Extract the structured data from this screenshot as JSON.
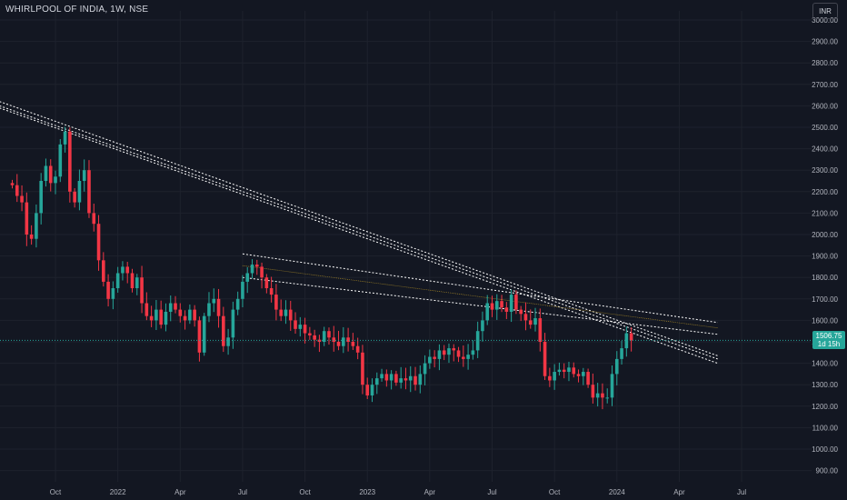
{
  "header": {
    "symbol_title": "WHIRLPOOL OF INDIA, 1W, NSE",
    "currency": "INR"
  },
  "last_price": {
    "value": "1506.75",
    "countdown": "1d 15h"
  },
  "colors": {
    "background": "#131722",
    "up": "#26a69a",
    "up_body": "#089981",
    "down": "#f23645",
    "down_body": "#f23645",
    "trendline": "#ffffff",
    "midline": "#c9a227",
    "price_line": "#26a69a",
    "axis_text": "#b2b5be"
  },
  "chart_data": {
    "type": "candlestick",
    "interval": "1W",
    "y_axis": {
      "ticks": [
        900,
        1000,
        1100,
        1200,
        1300,
        1400,
        1500,
        1600,
        1700,
        1800,
        1900,
        2000,
        2100,
        2200,
        2300,
        2400,
        2500,
        2600,
        2700,
        2800,
        2900,
        3000
      ],
      "labels": [
        "900.00",
        "1000.00",
        "1100.00",
        "1200.00",
        "1300.00",
        "1400.00",
        "1500.00",
        "1600.00",
        "1700.00",
        "1800.00",
        "1900.00",
        "2000.00",
        "2100.00",
        "2200.00",
        "2300.00",
        "2400.00",
        "2500.00",
        "2600.00",
        "2700.00",
        "2800.00",
        "2900.00",
        "3000.00"
      ],
      "range": [
        850,
        3050
      ]
    },
    "x_axis": {
      "labels": [
        "Oct",
        "2022",
        "Apr",
        "Jul",
        "Oct",
        "2023",
        "Apr",
        "Jul",
        "Oct",
        "2024",
        "Apr",
        "Jul"
      ],
      "label_weeks": [
        9,
        22,
        35,
        48,
        61,
        74,
        87,
        100,
        113,
        126,
        139,
        152
      ],
      "total_weeks": 165
    },
    "closes": [
      2230,
      2180,
      2150,
      2000,
      1980,
      2100,
      2250,
      2320,
      2240,
      2270,
      2420,
      2480,
      2200,
      2150,
      2250,
      2300,
      2100,
      2050,
      1880,
      1780,
      1700,
      1750,
      1820,
      1850,
      1820,
      1750,
      1800,
      1680,
      1620,
      1600,
      1650,
      1580,
      1640,
      1680,
      1650,
      1620,
      1600,
      1650,
      1600,
      1450,
      1620,
      1680,
      1700,
      1620,
      1480,
      1520,
      1650,
      1700,
      1780,
      1820,
      1860,
      1850,
      1800,
      1750,
      1720,
      1650,
      1620,
      1650,
      1600,
      1560,
      1580,
      1540,
      1530,
      1510,
      1500,
      1550,
      1520,
      1500,
      1480,
      1520,
      1500,
      1480,
      1450,
      1300,
      1250,
      1300,
      1330,
      1350,
      1320,
      1350,
      1310,
      1330,
      1320,
      1340,
      1300,
      1350,
      1400,
      1430,
      1420,
      1460,
      1440,
      1470,
      1460,
      1430,
      1420,
      1440,
      1460,
      1550,
      1600,
      1680,
      1650,
      1690,
      1660,
      1640,
      1720,
      1650,
      1630,
      1600,
      1580,
      1610,
      1500,
      1340,
      1320,
      1360,
      1370,
      1360,
      1380,
      1350,
      1340,
      1360,
      1300,
      1240,
      1260,
      1240,
      1240,
      1350,
      1420,
      1470,
      1540,
      1506.75
    ],
    "start_open": 2240,
    "trendlines": [
      {
        "style": "dotted",
        "points": [
          [
            0,
            2620
          ],
          [
            147,
            1435
          ]
        ]
      },
      {
        "style": "dotted",
        "points": [
          [
            0,
            2590
          ],
          [
            147,
            1400
          ]
        ]
      },
      {
        "style": "dotted",
        "points": [
          [
            0,
            2600
          ],
          [
            147,
            1420
          ]
        ]
      },
      {
        "style": "dotted",
        "points": [
          [
            48,
            1910
          ],
          [
            147,
            1590
          ]
        ]
      },
      {
        "style": "dotted",
        "points": [
          [
            48,
            1800
          ],
          [
            147,
            1535
          ]
        ]
      },
      {
        "style": "solid-mid",
        "points": [
          [
            48,
            1855
          ],
          [
            147,
            1565
          ]
        ]
      }
    ],
    "last_price": 1506.75
  }
}
